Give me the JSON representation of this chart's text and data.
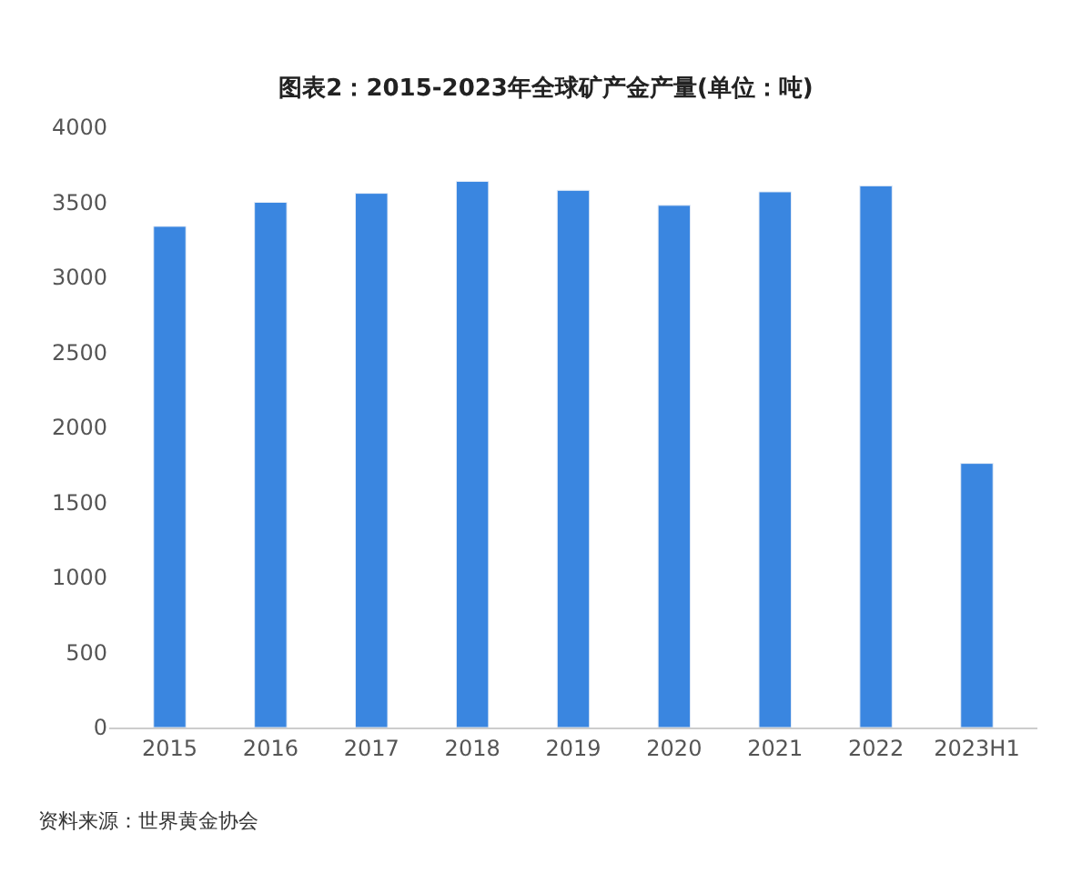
{
  "chart_data": {
    "type": "bar",
    "title": "图表2：2015-2023年全球矿产金产量(单位：吨)",
    "categories": [
      "2015",
      "2016",
      "2017",
      "2018",
      "2019",
      "2020",
      "2021",
      "2022",
      "2023H1"
    ],
    "values": [
      3340,
      3500,
      3560,
      3640,
      3580,
      3480,
      3570,
      3610,
      1760
    ],
    "color": "#3a86e0",
    "ylim": [
      0,
      4000
    ],
    "yticks": [
      0,
      500,
      1000,
      1500,
      2000,
      2500,
      3000,
      3500,
      4000
    ],
    "annotations": [
      "资料来源：世界黄金协会"
    ]
  }
}
